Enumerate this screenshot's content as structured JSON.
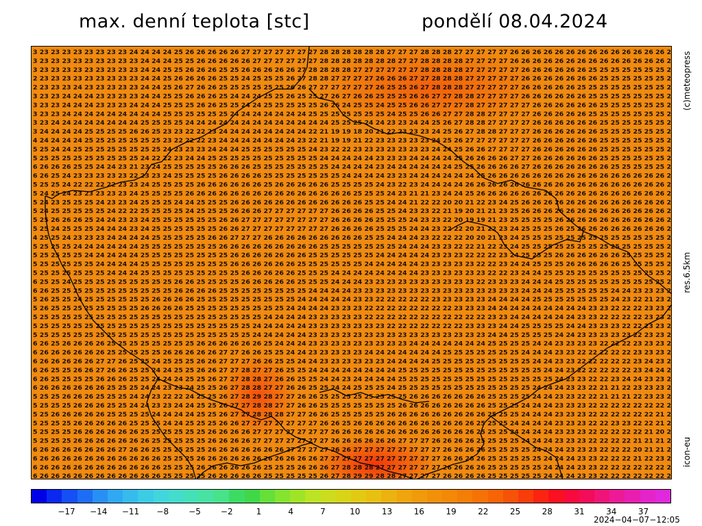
{
  "header": {
    "title": "max. denní teplota [stc]",
    "date": "pondělí 08.04.2024"
  },
  "side_labels": {
    "copyright": "(c)meteopress",
    "resolution": "res.6.5km",
    "model": "icon-eu"
  },
  "legend": {
    "ticks": [
      "−17",
      "−14",
      "−11",
      "−8",
      "−5",
      "−2",
      "1",
      "4",
      "7",
      "10",
      "13",
      "16",
      "19",
      "22",
      "25",
      "28",
      "31",
      "34",
      "37"
    ],
    "colors": [
      "#0000e6",
      "#0a28f0",
      "#1450f5",
      "#1e6ef5",
      "#2890f5",
      "#30a8f2",
      "#36bcec",
      "#3ccce6",
      "#42d6dc",
      "#44dccc",
      "#46e0b8",
      "#48e2a2",
      "#48e28a",
      "#3cdc64",
      "#40d848",
      "#64e038",
      "#84e430",
      "#a0e428",
      "#bce424",
      "#ccdc1e",
      "#d8d418",
      "#e2ca14",
      "#e8c012",
      "#ecb210",
      "#f0a40e",
      "#f09a0c",
      "#f2900a",
      "#f48808",
      "#f47e06",
      "#f67206",
      "#f66406",
      "#f65208",
      "#f83c0a",
      "#fa2410",
      "#fa1020",
      "#f80a3c",
      "#f40c5a",
      "#f01478",
      "#ec1a96",
      "#e81eb0",
      "#e424c8",
      "#e028dc"
    ],
    "timestamp": "2024−04−07−12:05"
  },
  "map": {
    "value_rows": [
      "3 23 23 23 23 23 23 23 23 24 24 24 24 25 26 26 26 26 26 27 27 27 27 27 27 27 28 28 28 28 28 28 27 27 27 28 28 28 27 27 27 27 27 26 26 26 26 26 26 26 26 26 26 26 26 26 26 2",
      "3 23 23 23 23 23 23 23 23 23 24 24 24 25 25 26 26 26 26 26 27 27 27 27 27 27 28 28 28 28 28 28 28 27 27 28 28 28 28 27 27 27 27 26 26 26 26 26 26 26 26 26 26 26 26 26 26 2",
      "3 23 23 23 23 23 23 23 23 23 24 24 25 25 26 26 26 25 25 26 26 26 26 26 27 28 28 28 28 27 27 27 27 27 27 28 28 28 28 27 27 27 27 27 26 26 26 26 26 26 25 25 25 25 25 25 25 2",
      "2 23 23 23 23 23 23 23 23 23 24 24 25 26 26 26 26 25 25 24 25 25 25 26 27 28 28 27 27 27 27 26 26 26 27 27 28 28 28 27 27 27 27 27 26 26 26 26 26 26 26 25 25 25 25 25 25 2",
      "2 23 23 23 24 23 23 23 23 23 24 24 25 26 27 26 26 25 25 25 25 25 25 26 26 27 27 27 27 27 27 26 25 25 26 27 28 28 28 27 27 27 27 27 26 26 26 26 26 25 25 25 25 25 25 25 25 2",
      "3 23 23 24 24 24 23 23 23 23 24 24 25 25 26 26 26 25 24 24 24 25 25 26 25 25 27 26 27 26 26 25 25 25 26 26 27 27 28 28 27 27 27 27 26 26 26 26 26 26 25 25 25 25 25 25 25 2",
      "3 23 23 24 24 24 23 23 23 24 24 24 25 25 25 26 26 25 25 24 24 25 25 25 25 25 26 26 24 25 25 24 25 25 26 26 27 27 27 28 27 27 27 27 27 26 26 26 26 26 26 25 25 25 25 25 25 2",
      "3 23 23 24 24 24 24 24 24 24 24 24 25 25 25 25 25 25 24 24 24 24 24 24 24 25 25 25 25 25 25 25 24 25 25 26 26 27 27 28 28 27 27 27 27 26 26 26 26 26 25 25 25 25 25 25 25 2",
      "3 23 24 24 24 24 24 24 24 24 25 25 25 25 24 24 24 24 24 24 24 24 24 24 24 24 24 25 25 25 24 24 23 23 24 24 25 26 27 28 28 27 27 27 27 26 26 26 26 26 26 25 25 25 25 25 25 2",
      "3 24 24 24 24 25 25 25 25 26 26 25 23 23 22 22 23 24 24 24 24 24 24 24 24 22 21 19 19 18 20 21 22 23 23 23 24 25 26 27 28 28 27 27 27 26 26 26 26 26 26 25 25 25 25 25 25 2",
      "4 24 24 24 24 25 25 25 25 25 25 25 23 22 22 22 23 24 24 24 24 24 24 24 23 22 21 19 19 21 22 23 23 23 23 23 24 25 26 27 27 27 27 27 27 26 26 26 26 26 26 25 25 25 25 25 25 2",
      "5 25 24 24 25 25 25 25 25 25 25 25 24 23 23 23 24 24 24 25 25 25 25 25 25 24 23 22 22 23 23 23 23 23 23 23 24 24 25 26 26 27 27 27 27 26 26 26 26 26 26 25 25 25 25 25 25 2",
      "5 25 25 25 25 25 25 25 25 25 24 22 22 23 24 24 25 25 25 25 25 25 25 25 25 25 24 24 24 24 24 23 23 23 24 24 24 24 25 26 26 26 26 27 27 26 26 26 26 26 26 25 25 25 25 25 25 2",
      "6 26 26 26 25 25 24 24 23 21 23 24 25 25 25 25 25 26 26 26 25 25 25 25 25 25 25 24 24 24 24 23 24 24 24 24 24 24 25 25 26 26 26 26 27 26 26 26 26 26 26 26 25 25 25 25 25 2",
      "6 26 25 24 23 23 23 23 23 22 23 23 24 25 25 25 25 26 26 26 26 25 25 25 25 25 25 25 24 24 24 24 23 23 24 24 24 24 24 24 25 26 26 26 26 26 26 26 26 26 26 26 26 26 26 26 26 2",
      "5 25 25 24 22 22 22 22 23 23 24 25 25 25 25 26 26 26 26 26 26 25 26 26 26 26 26 25 25 25 25 24 23 22 23 24 24 24 24 26 26 26 26 26 26 26 26 26 26 26 26 26 26 26 26 26 26 2",
      "5 24 25 24 23 23 23 23 23 24 25 25 25 25 26 26 26 26 26 26 26 26 26 26 26 26 26 26 26 25 25 25 24 23 21 21 23 24 24 25 26 26 26 26 26 26 26 26 26 26 26 26 26 26 26 26 26 2",
      "5 24 23 25 25 25 24 23 23 24 25 25 25 24 24 25 25 25 26 26 26 26 26 26 26 26 26 26 26 26 25 25 24 24 21 22 22 20 20 21 22 23 24 25 26 26 26 26 26 26 26 26 26 26 26 26 26 2",
      "5 24 25 25 25 25 25 24 22 22 25 25 25 25 24 25 25 25 26 26 26 27 27 27 27 27 27 26 26 26 26 25 25 24 23 23 22 21 19 20 21 21 23 25 26 26 26 26 26 26 26 26 26 26 26 26 26 2",
      "5 25 26 26 26 25 24 24 23 23 24 25 25 25 25 25 25 26 26 27 27 27 27 27 27 27 27 26 26 26 26 25 25 25 24 23 23 22 20 19 19 21 23 25 25 25 25 26 26 26 26 26 26 26 26 26 26 2",
      "5 25 24 25 25 25 24 24 24 23 24 25 25 25 25 25 25 26 26 27 27 27 27 27 27 27 27 26 26 26 26 25 25 25 24 24 23 22 22 20 21 22 23 24 25 25 25 26 25 26 26 26 26 26 26 26 26 2",
      "4 25 25 24 23 23 23 24 24 24 24 25 25 25 25 25 26 26 27 27 27 26 26 26 26 26 26 26 26 26 25 25 24 24 24 23 22 22 22 20 20 21 23 24 25 25 25 25 25 25 25 25 25 25 25 25 25 2",
      "5 25 25 25 24 24 24 24 24 24 25 25 25 25 25 25 25 26 26 26 26 26 26 26 26 26 25 25 25 25 25 25 25 24 24 24 23 23 22 22 21 22 23 24 25 25 25 25 25 25 25 25 25 25 25 25 25 2",
      "5 25 25 25 25 24 24 24 24 24 25 25 25 25 25 25 25 25 26 26 26 26 26 26 26 25 25 25 25 25 25 24 24 24 24 24 23 23 23 22 22 22 23 24 25 25 25 26 26 26 26 26 26 25 25 25 25 2",
      "5 25 25 25 25 25 24 24 24 24 25 25 25 25 25 25 25 25 26 26 26 26 26 26 25 25 25 25 25 25 24 24 24 24 24 23 23 23 23 23 22 22 23 24 24 25 25 25 26 26 26 26 26 25 25 25 25 2",
      "5 25 25 25 25 25 25 24 24 24 25 25 25 25 25 25 25 25 25 26 26 26 26 26 25 25 25 24 24 24 24 24 24 24 24 23 23 23 23 23 23 22 22 23 24 24 25 25 25 25 25 25 25 25 25 25 25 2",
      "6 25 25 24 25 25 25 25 25 25 25 25 25 26 26 25 25 25 25 26 26 26 26 26 25 25 25 24 24 24 23 23 23 23 23 23 23 23 23 23 22 23 23 23 24 24 24 25 25 25 25 25 25 25 25 25 25 2",
      "6 26 25 25 25 25 25 25 25 25 25 25 25 26 26 26 26 25 25 25 25 25 25 25 25 24 24 24 24 23 23 23 23 23 23 23 23 23 23 23 23 23 23 23 24 24 24 25 25 25 25 25 24 24 23 23 23 2",
      "5 26 25 25 24 25 25 25 25 25 25 26 26 26 26 25 25 25 25 25 25 25 25 25 24 24 24 24 24 23 23 22 22 22 22 22 23 23 23 23 23 24 24 24 24 25 25 25 25 25 25 25 24 23 22 21 23 2",
      "5 26 25 25 25 25 25 25 25 25 26 26 26 26 25 25 25 25 25 25 25 25 25 24 24 24 24 23 23 23 22 22 22 22 22 22 22 22 23 23 23 24 24 24 24 24 24 24 24 24 23 23 22 22 22 23 23 2",
      "5 25 25 25 25 25 25 25 25 25 25 25 25 25 25 25 25 25 25 25 25 24 24 24 24 23 23 23 23 23 22 22 22 22 22 22 22 22 22 22 22 23 23 24 24 24 24 24 24 23 23 22 22 22 22 23 23 2",
      "5 25 25 25 25 25 25 25 25 25 25 25 25 25 25 25 25 25 25 25 24 24 24 24 24 23 23 23 23 23 23 23 22 22 22 22 22 22 22 23 23 23 24 24 25 25 25 25 24 24 23 23 23 22 22 23 23 2",
      "5 25 25 25 25 25 25 25 25 25 25 25 25 25 25 25 25 25 25 25 24 24 24 24 24 23 23 23 23 23 23 23 23 23 23 23 23 23 23 23 23 24 24 25 25 25 25 24 24 23 23 23 23 23 22 23 23 2",
      "6 26 25 26 26 26 26 25 25 25 25 25 25 25 25 26 26 26 26 26 26 25 24 24 24 23 23 23 23 23 23 23 23 23 24 24 24 24 24 24 24 25 25 25 25 24 24 23 23 23 23 22 22 22 23 23 23 2",
      "6 26 26 26 26 26 26 25 25 25 25 25 26 26 26 26 26 27 27 26 26 25 25 24 24 23 23 23 23 23 24 24 24 24 24 24 24 25 25 25 25 25 25 25 24 24 24 23 23 22 22 22 22 22 23 23 23 2",
      "6 26 26 26 26 26 27 27 26 25 25 24 25 25 25 26 26 27 27 27 26 26 25 25 24 24 23 23 23 23 23 23 24 24 24 24 25 25 25 25 25 25 25 25 25 24 24 23 23 22 22 22 22 22 23 24 23 2",
      "6 26 25 25 26 26 27 26 26 25 25 24 24 25 25 26 26 27 27 28 27 27 26 25 25 24 24 24 24 24 24 24 24 25 25 25 25 25 25 25 25 25 25 25 25 25 24 24 23 22 22 22 22 22 23 24 24 2",
      "6 26 25 25 25 25 26 26 26 25 25 24 24 24 25 25 26 27 27 28 28 27 26 26 25 25 24 24 23 24 24 24 24 25 25 25 25 25 25 25 25 25 25 25 25 25 25 24 23 23 22 22 23 24 24 23 23 2",
      "6 26 26 26 26 26 26 25 25 25 24 24 23 23 24 25 25 26 27 28 28 27 27 26 26 25 25 24 24 25 25 25 24 25 25 25 25 25 25 25 25 25 25 25 25 24 24 24 23 23 22 21 21 22 23 23 23 2",
      "5 25 25 26 26 26 25 25 25 24 24 23 22 22 24 25 25 26 27 28 29 28 27 27 26 26 25 25 25 25 25 25 25 25 26 26 26 26 26 26 26 25 25 25 25 24 24 23 23 22 22 21 21 21 22 23 23 2",
      "5 25 25 25 26 26 26 25 25 24 24 23 23 24 24 25 25 26 27 27 28 28 27 27 26 26 25 25 25 25 25 25 25 26 26 26 26 26 26 26 26 25 25 25 24 24 24 23 23 23 22 22 22 22 22 22 22 2",
      "5 25 26 26 26 26 26 25 25 25 25 24 24 24 24 25 25 26 27 27 28 28 28 27 27 26 26 25 25 25 25 25 26 26 26 26 26 26 26 26 26 25 25 25 24 24 24 23 23 23 22 22 22 22 22 22 21 2",
      "5 25 25 25 26 26 26 26 26 25 25 25 24 24 25 25 25 26 26 27 27 27 27 27 27 27 26 26 25 26 26 26 26 26 26 26 26 26 26 26 25 25 25 24 24 24 24 23 23 23 22 22 23 23 22 22 21 2",
      "5 25 25 25 26 26 26 26 26 26 25 25 25 25 25 25 26 26 26 26 27 27 27 27 27 27 27 26 26 26 26 26 26 26 26 26 26 26 26 26 25 25 25 24 24 24 24 23 23 23 22 22 22 22 22 21 20 2",
      "5 25 25 25 26 26 26 26 26 26 26 25 25 25 25 25 26 26 26 26 27 27 27 27 27 27 27 26 26 26 26 26 26 27 27 27 26 26 26 26 25 25 25 25 24 24 24 23 23 23 22 22 22 22 21 21 21 2",
      "6 26 26 26 26 26 26 26 27 26 26 25 25 25 25 25 26 26 26 26 26 26 26 27 27 27 27 26 26 27 27 27 27 27 27 27 27 26 26 26 26 25 25 25 25 24 24 24 23 23 23 22 22 22 20 21 21 2",
      "6 26 26 26 26 26 26 26 26 26 26 26 25 25 25 26 26 26 26 26 26 26 26 26 26 26 27 27 27 27 27 27 27 27 27 27 27 26 26 26 26 25 25 25 25 25 24 24 24 23 23 22 22 22 21 22 23 2",
      "6 26 26 26 26 26 26 26 26 26 26 26 25 25 25 26 26 26 26 26 26 25 25 25 26 26 26 27 28 28 28 27 27 27 27 27 27 26 26 26 26 25 25 25 25 25 24 24 24 23 23 22 22 22 22 22 22 2",
      "6 26 26 26 26 26 26 26 26 26 26 26 25 25 25 25 26 26 26 26 26 25 25 25 25 25 26 27 28 29 29 28 28 27 27 27 27 26 26 26 26 25 25 25 25 25 24 24 24 23 23 22 22 22 22 22 22 2",
      "6 25 26 25 25 25 25 26 26 26 26 26 26 26 26 26 26 27 27 27 27 26 26 26 26 26 27 28 29 29 30 30 29 28 27 27 27 26 26 26 26 26 27 25 25 25 25 25 24 24 24 24 23 23 22 22 22 2"
    ]
  }
}
